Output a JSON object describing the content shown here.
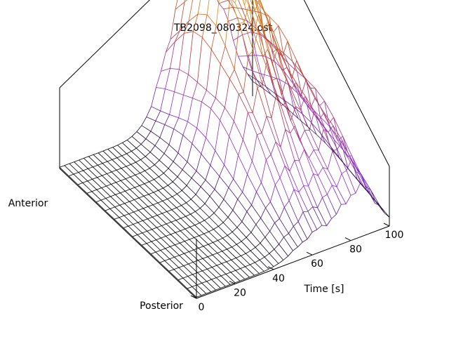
{
  "chart_data": {
    "type": "surface",
    "title": "TB2098_080324.ost",
    "xlabel": "Time [s]",
    "ylabel_start": "Posterior",
    "ylabel_end": "Anterior",
    "xlim": [
      0,
      100
    ],
    "x_ticks": [
      "0",
      "20",
      "40",
      "60",
      "80",
      "100"
    ],
    "grid": false,
    "colormap": [
      "#000000",
      "#8a2be2",
      "#c0392b",
      "#e5a50a"
    ],
    "x_grid_count": 41,
    "y_grid_count": 16,
    "surface_description_z_relative": "flat near zero for times 0-40 s; rises in a broad ridge between 45 and 95 s peaking near 65-90 s toward the anterior side with max relative height 1.0"
  }
}
